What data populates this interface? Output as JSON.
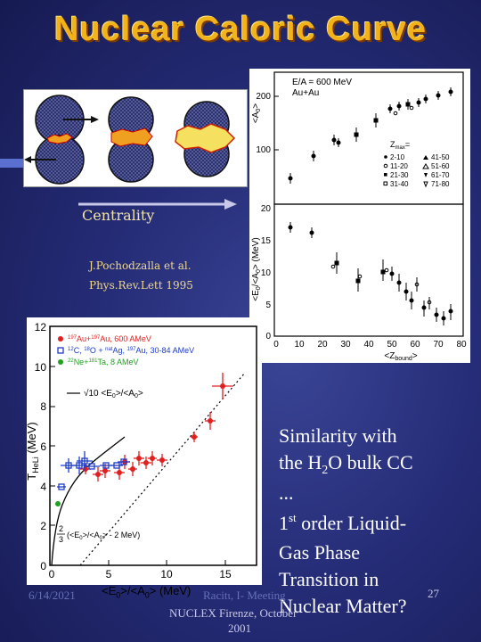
{
  "title": "Nuclear Caloric Curve",
  "left_top": {
    "centrality_label": "Centrality",
    "citation_line1": "J.Pochodzalla et al.",
    "citation_line2": "Phys.Rev.Lett 1995"
  },
  "right_plot": {
    "legend": {
      "line1": "E/A = 600 MeV",
      "line2": "Au+Au",
      "zmax_label": "Z",
      "zmax_sub": "max",
      "zmax_eq": "=",
      "ranges": [
        "2-10",
        "11-20",
        "21-30",
        "31-40",
        "41-50",
        "51-60",
        "61-70",
        "71-80"
      ]
    },
    "upper_ylabel": "<A",
    "upper_ylabel_sub": "0",
    "upper_ylabel_end": ">",
    "upper_ticks": [
      "200",
      "100"
    ],
    "lower_ylabel": "<E",
    "lower_ylabel_sub": "0",
    "lower_ylabel_mid": "/<A",
    "lower_ylabel_end": "> (MeV)",
    "lower_ticks": [
      "20",
      "15",
      "10",
      "5",
      "0"
    ],
    "x_ticks": [
      "0",
      "10",
      "20",
      "30",
      "40",
      "50",
      "60",
      "70",
      "80"
    ],
    "xlabel": "<Z",
    "xlabel_sub": "bound",
    "xlabel_end": ">"
  },
  "left_plot": {
    "ylabel": "T",
    "ylabel_sub": "HeLi",
    "ylabel_end": " (MeV)",
    "y_ticks": [
      "12",
      "10",
      "8",
      "6",
      "4",
      "2",
      "0"
    ],
    "x_ticks": [
      "0",
      "5",
      "10",
      "15"
    ],
    "xlabel": "<E",
    "xlabel_sub": "0",
    "xlabel_mid": ">/<A",
    "xlabel_end": "> (MeV)",
    "legend": [
      {
        "pre": "197",
        "a": "Au+",
        "pre2": "197",
        "b": "Au, 600 AMeV",
        "color": "#e02020",
        "marker": "dot"
      },
      {
        "pre": "12",
        "a": "C, ",
        "pre2": "18",
        "b": "O + ",
        "pre3": "nat",
        "c": "Ag, ",
        "pre4": "197",
        "d": "Au, 30-84 AMeV",
        "color": "#1e3cc8",
        "marker": "square"
      },
      {
        "pre": "22",
        "a": "Ne+",
        "pre2": "181",
        "b": "Ta, 8 AMeV",
        "color": "#20a020",
        "marker": "dot"
      }
    ],
    "annot_sqrt": "√10 <E",
    "annot_sqrt_sub": "0",
    "annot_sqrt_end": ">/<A",
    "annot_sqrt_sub2": "0",
    "annot_sqrt_end2": ">",
    "annot_frac_num": "2",
    "annot_frac_den": "3",
    "annot_lin": "(<E",
    "annot_lin_sub": "0",
    "annot_lin_mid": ">/<A",
    "annot_lin_sub2": "0",
    "annot_lin_end": "> - 2 MeV)"
  },
  "statement": {
    "line1": "Similarity with",
    "line2a": "the  H",
    "line2sub": "2",
    "line2b": "O bulk CC",
    "line3": "...",
    "line4a": "1",
    "line4sup": "st",
    "line4b": " order Liquid-",
    "line5": "Gas Phase",
    "line6": "Transition in",
    "line7": "Nuclear Matter?"
  },
  "footer": {
    "date": "6/14/2021",
    "author": "Racitι, I- Meeting",
    "conference": "NUCLEX Firenze, October",
    "year": "2001",
    "page": "27"
  },
  "colors": {
    "title": "#f2b21a",
    "background": "#262d78",
    "accent_red": "#e02020",
    "accent_blue": "#1e3cc8",
    "accent_green": "#20a020"
  }
}
